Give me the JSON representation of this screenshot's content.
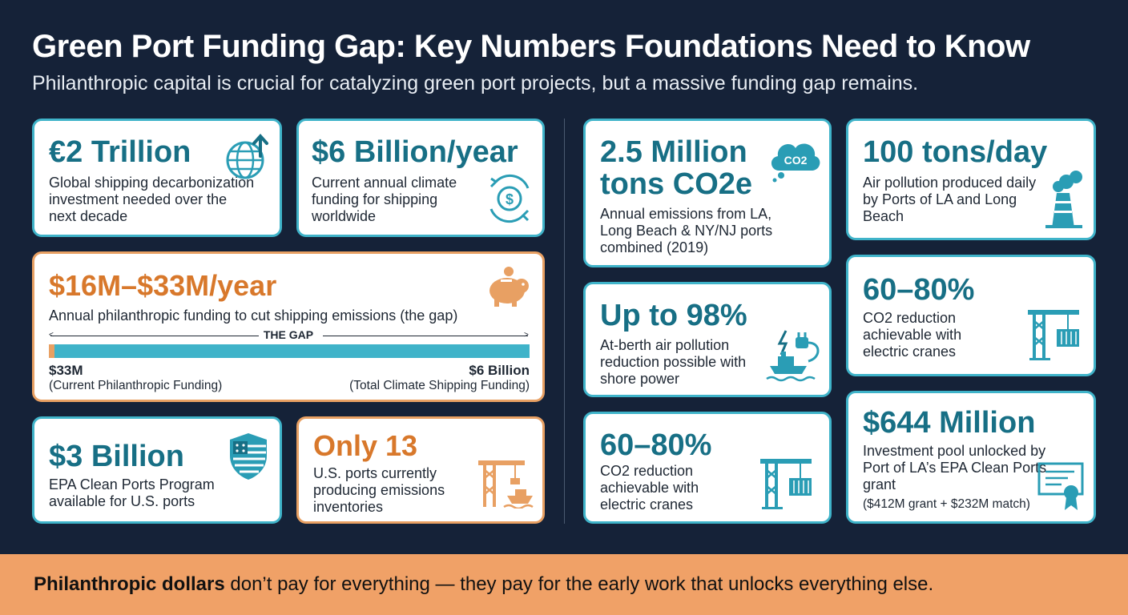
{
  "header": {
    "title": "Green Port Funding Gap: Key Numbers Foundations Need to Know",
    "subtitle": "Philanthropic capital is crucial for catalyzing green port projects, but a massive funding gap remains."
  },
  "colors": {
    "background": "#152238",
    "teal": "#176f85",
    "teal_border": "#3fb3c9",
    "orange": "#d8782b",
    "orange_border": "#e8a063",
    "footer": "#f0a167"
  },
  "cards": {
    "trillion": {
      "stat": "€2 Trillion",
      "desc": "Global shipping decarbonization investment needed over the next decade",
      "icon": "globe-arrow-icon"
    },
    "six_billion": {
      "stat": "$6 Billion/year",
      "desc": "Current annual climate funding for shipping worldwide",
      "icon": "money-cycle-icon"
    },
    "gap": {
      "stat": "$16M–$33M/year",
      "desc": "Annual philanthropic funding to cut shipping emissions (the gap)",
      "gap_label": "THE GAP",
      "left_value": "$33M",
      "left_sub": "(Current Philanthropic Funding)",
      "right_value": "$6 Billion",
      "right_sub": "(Total Climate Shipping Funding)",
      "fill_fraction": 0.0055,
      "icon": "piggy-bank-icon"
    },
    "epa": {
      "stat": "$3 Billion",
      "desc": "EPA Clean Ports Program available for U.S. ports",
      "icon": "us-shield-icon"
    },
    "only13": {
      "stat": "Only 13",
      "desc": "U.S. ports currently producing emissions inventories",
      "icon": "port-crane-ship-icon"
    },
    "co2e": {
      "stat_line1": "2.5 Million",
      "stat_line2": "tons CO2e",
      "desc": "Annual emissions from LA, Long Beach & NY/NJ ports combined (2019)",
      "icon": "co2-cloud-icon",
      "icon_text": "CO2"
    },
    "tons_day": {
      "stat": "100 tons/day",
      "desc": "Air pollution produced daily by Ports of LA and Long Beach",
      "icon": "factory-icon"
    },
    "shore": {
      "stat": "Up to 98%",
      "desc": "At-berth air pollution reduction possible with shore power",
      "icon": "ship-plug-icon"
    },
    "cranes_right": {
      "stat": "60–80%",
      "desc": "CO2 reduction achievable with electric cranes",
      "icon": "crane-container-icon"
    },
    "cranes_mid": {
      "stat": "60–80%",
      "desc": "CO2 reduction achievable with electric cranes",
      "icon": "crane-container-icon"
    },
    "million644": {
      "stat": "$644 Million",
      "desc": "Investment pool unlocked by Port of LA’s EPA Clean Ports grant",
      "note": "($412M grant + $232M match)",
      "icon": "certificate-icon"
    }
  },
  "footer": {
    "bold": "Philanthropic dollars",
    "rest": " don’t pay for everything — they pay for the early work that unlocks everything else."
  }
}
